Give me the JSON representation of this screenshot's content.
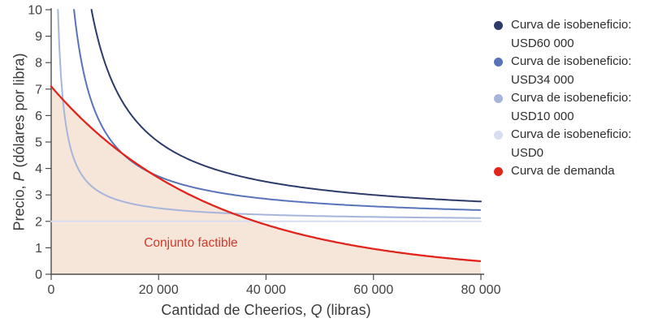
{
  "figure": {
    "background": "#ffffff",
    "axis_color": "#4d4d4d",
    "tick_label_color": "#414042",
    "axis_label_color": "#3a3a3a",
    "legend_text_color": "#2e2e2e"
  },
  "chart_data": {
    "type": "line",
    "title": "",
    "xlabel": {
      "pre": "Cantidad de Cheerios, ",
      "var": "Q",
      "post": " (libras)"
    },
    "ylabel": {
      "pre": "Precio, ",
      "var": "P",
      "post": " (dólares por libra)"
    },
    "xlim": [
      0,
      80000
    ],
    "ylim": [
      0,
      10
    ],
    "grid": false,
    "legend_position": "right",
    "x_ticks": [
      {
        "value": 0,
        "label": "0"
      },
      {
        "value": 20000,
        "label": "20 000"
      },
      {
        "value": 40000,
        "label": "40 000"
      },
      {
        "value": 60000,
        "label": "60 000"
      },
      {
        "value": 80000,
        "label": "80 000"
      }
    ],
    "y_ticks": [
      {
        "value": 0,
        "label": "0"
      },
      {
        "value": 1,
        "label": "1"
      },
      {
        "value": 2,
        "label": "2"
      },
      {
        "value": 3,
        "label": "3"
      },
      {
        "value": 4,
        "label": "4"
      },
      {
        "value": 5,
        "label": "5"
      },
      {
        "value": 6,
        "label": "6"
      },
      {
        "value": 7,
        "label": "7"
      },
      {
        "value": 8,
        "label": "8"
      },
      {
        "value": 9,
        "label": "9"
      },
      {
        "value": 10,
        "label": "10"
      }
    ],
    "series": [
      {
        "id": "isoprofit-60000",
        "legend_lines": [
          "Curva de isobeneficio:",
          "USD60 000"
        ],
        "type": "isoprofit",
        "profit_usd": 60000,
        "unit_cost_usd_per_lb": 2,
        "color": "#2c3b6a",
        "stroke_width": 2,
        "sample_points": [
          [
            7500,
            10
          ],
          [
            10000,
            8
          ],
          [
            15000,
            6
          ],
          [
            20000,
            5
          ],
          [
            30000,
            4
          ],
          [
            40000,
            3.5
          ],
          [
            60000,
            3
          ],
          [
            80000,
            2.75
          ]
        ]
      },
      {
        "id": "isoprofit-34000",
        "legend_lines": [
          "Curva de isobeneficio:",
          "USD34 000"
        ],
        "type": "isoprofit",
        "profit_usd": 34000,
        "unit_cost_usd_per_lb": 2,
        "color": "#5873b9",
        "stroke_width": 2,
        "sample_points": [
          [
            4250,
            10
          ],
          [
            8500,
            6
          ],
          [
            17000,
            4
          ],
          [
            34000,
            3
          ],
          [
            48600,
            2.7
          ],
          [
            68000,
            2.5
          ],
          [
            80000,
            2.43
          ]
        ]
      },
      {
        "id": "isoprofit-10000",
        "legend_lines": [
          "Curva de isobeneficio:",
          "USD10 000"
        ],
        "type": "isoprofit",
        "profit_usd": 10000,
        "unit_cost_usd_per_lb": 2,
        "color": "#a6b5db",
        "stroke_width": 2,
        "sample_points": [
          [
            1250,
            10
          ],
          [
            2500,
            6
          ],
          [
            5000,
            4
          ],
          [
            10000,
            3
          ],
          [
            20000,
            2.5
          ],
          [
            40000,
            2.25
          ],
          [
            80000,
            2.13
          ]
        ]
      },
      {
        "id": "isoprofit-0",
        "legend_lines": [
          "Curva de isobeneficio:",
          "USD0"
        ],
        "type": "isoprofit",
        "profit_usd": 0,
        "unit_cost_usd_per_lb": 2,
        "color": "#d7def0",
        "stroke_width": 2,
        "sample_points": [
          [
            0,
            2
          ],
          [
            80000,
            2
          ]
        ]
      },
      {
        "id": "demand",
        "legend_lines": [
          "Curva de demanda"
        ],
        "type": "demand",
        "price_intercept_usd": 7.1,
        "decay_q_lb": 30000,
        "color": "#e1251c",
        "stroke_width": 2.3,
        "area_fill": "#f6e6d9",
        "sample_points": [
          [
            0,
            7.1
          ],
          [
            5000,
            6.01
          ],
          [
            10000,
            5.09
          ],
          [
            14000,
            4.45
          ],
          [
            20000,
            3.65
          ],
          [
            25000,
            3.09
          ],
          [
            30000,
            2.61
          ],
          [
            35000,
            2.21
          ],
          [
            40000,
            1.87
          ],
          [
            45000,
            1.58
          ],
          [
            50000,
            1.34
          ],
          [
            55000,
            1.14
          ],
          [
            60000,
            0.96
          ],
          [
            65000,
            0.81
          ],
          [
            70000,
            0.69
          ],
          [
            75000,
            0.58
          ],
          [
            80000,
            0.49
          ]
        ]
      }
    ],
    "annotations": [
      {
        "id": "feasible-set",
        "text": "Conjunto factible",
        "q": 26000,
        "p": 1.05,
        "color": "#cf3a2c",
        "font_size": 15.5
      }
    ]
  }
}
